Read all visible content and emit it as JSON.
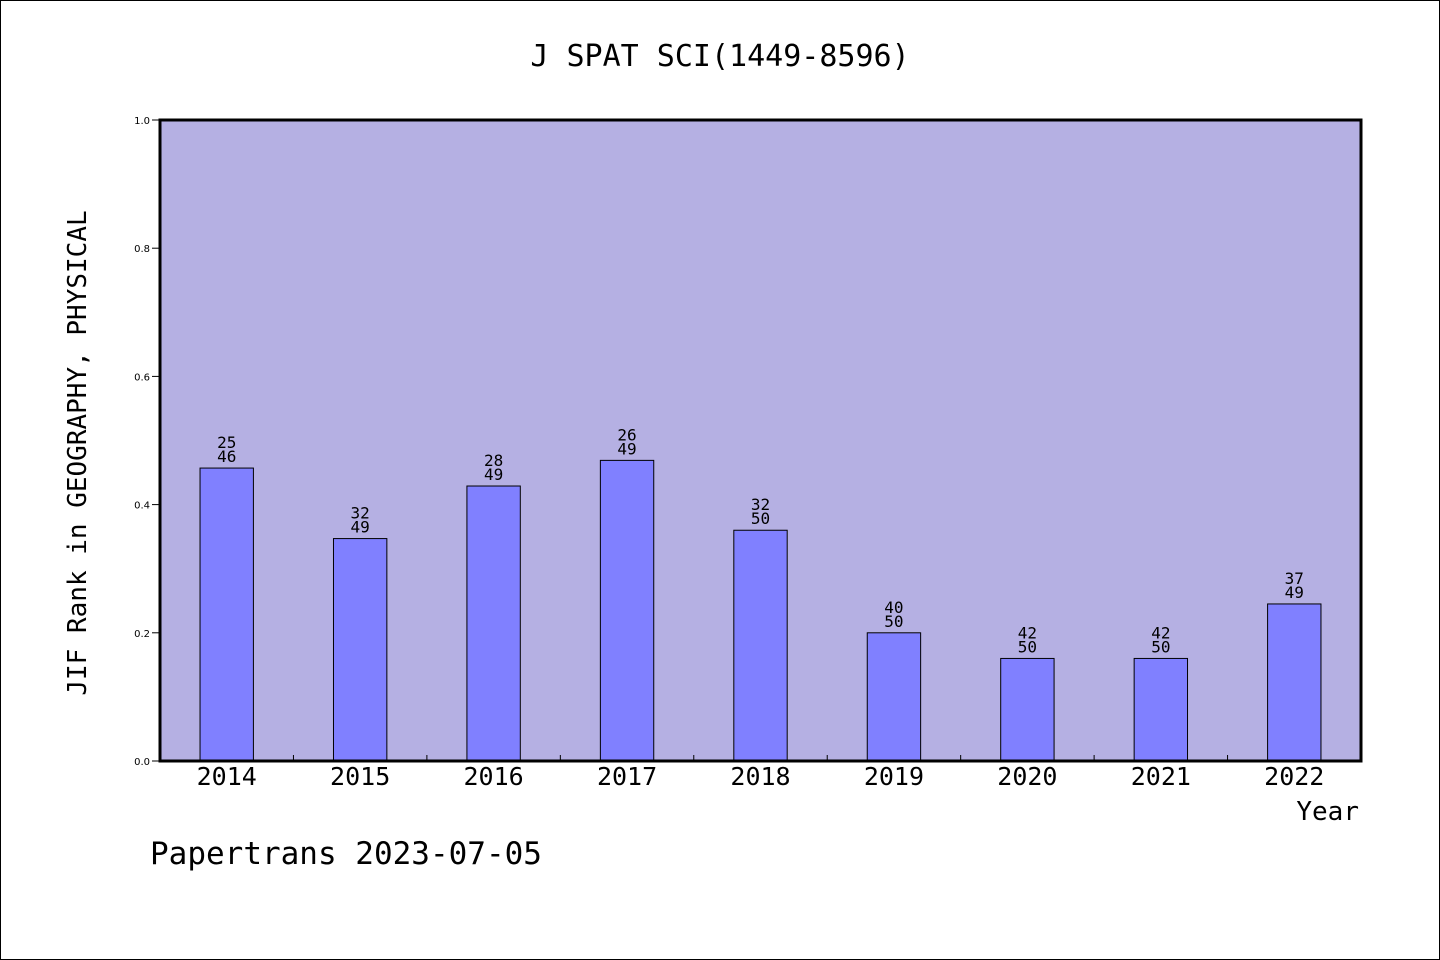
{
  "chart_data": {
    "type": "bar",
    "title": "J SPAT SCI(1449-8596)",
    "xlabel": "Year",
    "ylabel": "JIF Rank in GEOGRAPHY, PHYSICAL",
    "ylim": [
      0,
      1.0
    ],
    "yticks": [
      "0.0",
      "0.2",
      "0.4",
      "0.6",
      "0.8",
      "1.0"
    ],
    "categories": [
      "2014",
      "2015",
      "2016",
      "2017",
      "2018",
      "2019",
      "2020",
      "2021",
      "2022"
    ],
    "values": [
      0.457,
      0.347,
      0.429,
      0.469,
      0.36,
      0.2,
      0.16,
      0.16,
      0.245
    ],
    "bar_labels": [
      {
        "rank": "25",
        "total": "46"
      },
      {
        "rank": "32",
        "total": "49"
      },
      {
        "rank": "28",
        "total": "49"
      },
      {
        "rank": "26",
        "total": "49"
      },
      {
        "rank": "32",
        "total": "50"
      },
      {
        "rank": "40",
        "total": "50"
      },
      {
        "rank": "42",
        "total": "50"
      },
      {
        "rank": "42",
        "total": "50"
      },
      {
        "rank": "37",
        "total": "49"
      }
    ],
    "grid": false,
    "colors": {
      "plot_background": "#b5b0e3",
      "bar_fill": "#8080ff",
      "bar_stroke": "#000000"
    }
  },
  "footer": {
    "credit": "Papertrans 2023-07-05"
  }
}
